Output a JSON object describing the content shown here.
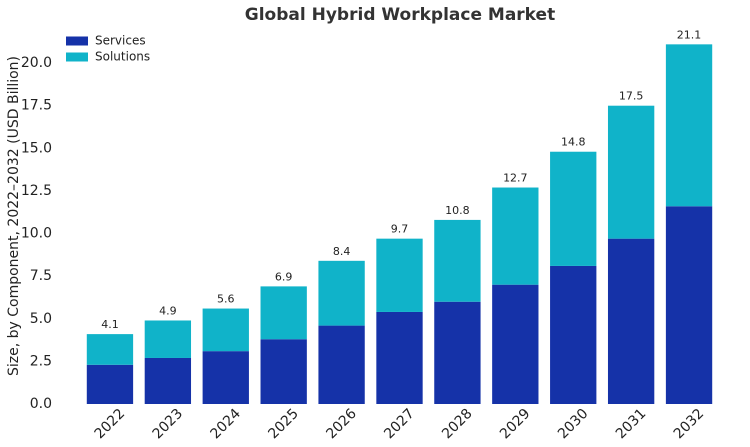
{
  "chart_data": {
    "type": "stacked_bar",
    "title": "Global Hybrid Workplace Market",
    "y_label": "Size, by Component, 2022–2032 (USD Billion)",
    "categories": [
      "2022",
      "2023",
      "2024",
      "2025",
      "2026",
      "2027",
      "2028",
      "2029",
      "2030",
      "2031",
      "2032"
    ],
    "series": [
      {
        "name": "Services",
        "color": "#1532a8",
        "values": [
          2.3,
          2.7,
          3.1,
          3.8,
          4.6,
          5.4,
          6.0,
          7.0,
          8.1,
          9.7,
          11.6
        ]
      },
      {
        "name": "Solutions",
        "color": "#10b3c9",
        "values": [
          1.8,
          2.2,
          2.5,
          3.1,
          3.8,
          4.3,
          4.8,
          5.7,
          6.7,
          7.8,
          9.5
        ]
      }
    ],
    "totals": [
      4.1,
      4.9,
      5.6,
      6.9,
      8.4,
      9.7,
      10.8,
      12.7,
      14.8,
      17.5,
      21.1
    ],
    "ylim": [
      0,
      22
    ],
    "yticks": [
      {
        "value": 0,
        "label": "0.0"
      },
      2.5,
      {
        "value": 5,
        "label": "5.0"
      },
      7.5,
      {
        "value": 10,
        "label": "10.0"
      },
      12.5,
      {
        "value": 15,
        "label": "15.0"
      },
      17.5,
      {
        "value": 20,
        "label": "20.0"
      }
    ],
    "legend": "upper-left"
  }
}
